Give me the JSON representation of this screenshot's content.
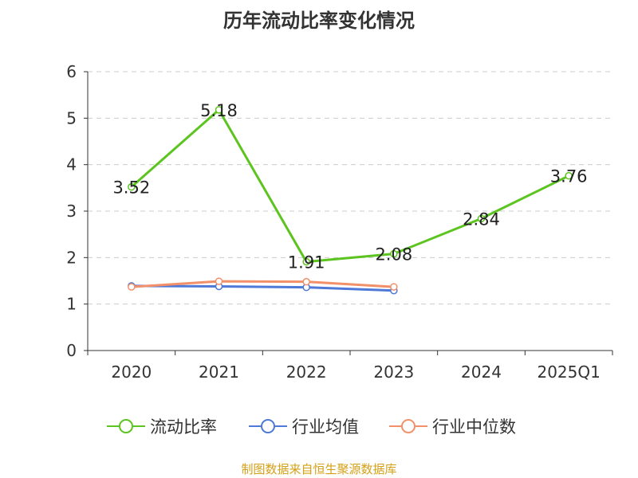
{
  "title": "历年流动比率变化情况",
  "footer": "制图数据来自恒生聚源数据库",
  "chart_data": {
    "type": "line",
    "categories": [
      "2020",
      "2021",
      "2022",
      "2023",
      "2024",
      "2025Q1"
    ],
    "ylim": [
      0,
      6
    ],
    "yticks": [
      0,
      1,
      2,
      3,
      4,
      5,
      6
    ],
    "grid": true,
    "legend_position": "bottom",
    "series": [
      {
        "name": "流动比率",
        "color": "#5cc41f",
        "values": [
          3.52,
          5.18,
          1.91,
          2.08,
          2.84,
          3.76
        ],
        "labels": [
          "3.52",
          "5.18",
          "1.91",
          "2.08",
          "2.84",
          "3.76"
        ]
      },
      {
        "name": "行业均值",
        "color": "#4e79d8",
        "values": [
          1.39,
          1.38,
          1.36,
          1.29,
          null,
          null
        ]
      },
      {
        "name": "行业中位数",
        "color": "#f2906a",
        "values": [
          1.37,
          1.49,
          1.48,
          1.37,
          null,
          null
        ]
      }
    ]
  }
}
